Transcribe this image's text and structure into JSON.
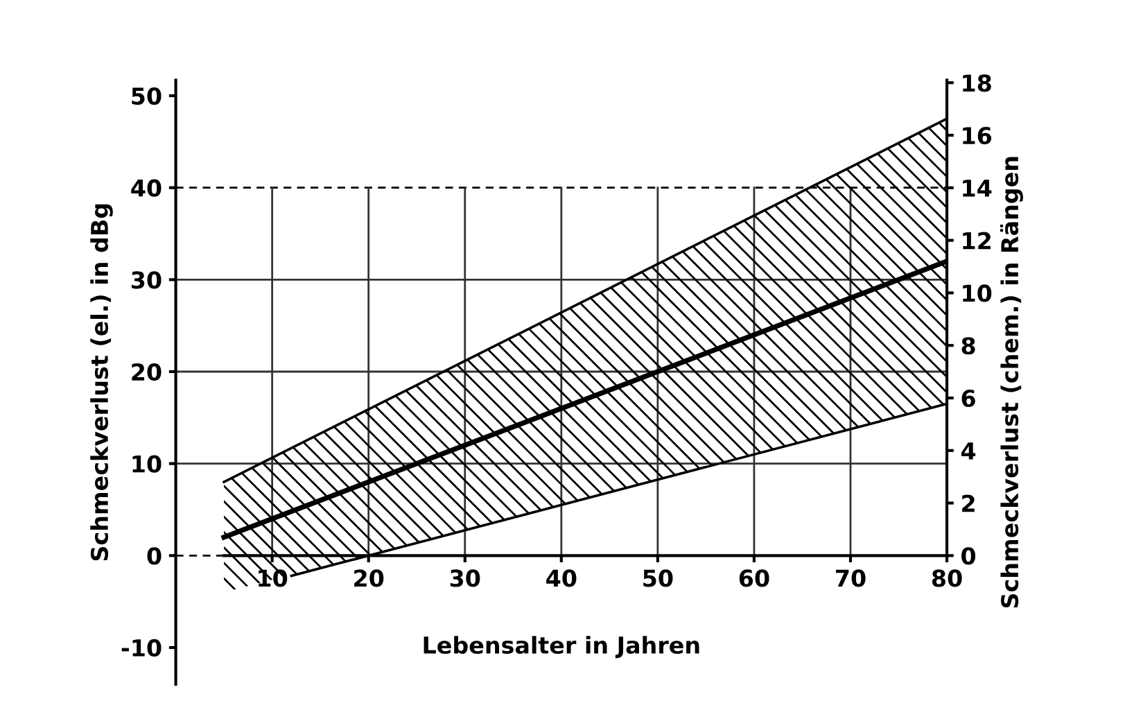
{
  "chart_data": {
    "type": "line",
    "xlabel": "Lebensalter in Jahren",
    "ylabel": "Schmeckverlust (el.) in dBg",
    "y2label": "Schmeckverlust (chem.) in Rängen",
    "xlim": [
      0,
      80
    ],
    "xticks": [
      10,
      20,
      30,
      40,
      50,
      60,
      70,
      80
    ],
    "ylim": [
      -14,
      51.7
    ],
    "yticks": [
      -10,
      0,
      10,
      20,
      30,
      40,
      50
    ],
    "y2lim": [
      -4.9,
      18.1
    ],
    "y2ticks": [
      0,
      2,
      4,
      6,
      8,
      10,
      12,
      14,
      16,
      18
    ],
    "series": [
      {
        "color": "#000000",
        "x": [
          5,
          80
        ],
        "values": [
          2,
          32
        ],
        "lower": [
          -4,
          16.5
        ],
        "upper": [
          8,
          47.5
        ]
      },
      {
        "color": "#000000",
        "x": [
          5,
          80
        ],
        "values": [
          8,
          47.5
        ]
      },
      {
        "color": "#000000",
        "x": [
          12,
          80
        ],
        "values": [
          -2.2,
          16.5
        ]
      }
    ],
    "ref_lines": [
      {
        "axis": "y",
        "value": 0,
        "line_style": "dashed",
        "color": "#000000"
      },
      {
        "axis": "y",
        "value": 40,
        "line_style": "dashed",
        "color": "#000000"
      },
      {
        "axis": "y",
        "value": 10,
        "line_style": "solid",
        "color": "#333333"
      },
      {
        "axis": "y",
        "value": 20,
        "line_style": "solid",
        "color": "#333333"
      },
      {
        "axis": "y",
        "value": 30,
        "line_style": "solid",
        "color": "#333333"
      },
      {
        "axis": "x",
        "value": 10,
        "line_style": "solid",
        "color": "#333333"
      },
      {
        "axis": "x",
        "value": 20,
        "line_style": "solid",
        "color": "#333333"
      },
      {
        "axis": "x",
        "value": 30,
        "line_style": "solid",
        "color": "#333333"
      },
      {
        "axis": "x",
        "value": 40,
        "line_style": "solid",
        "color": "#333333"
      },
      {
        "axis": "x",
        "value": 50,
        "line_style": "solid",
        "color": "#333333"
      },
      {
        "axis": "x",
        "value": 60,
        "line_style": "solid",
        "color": "#333333"
      },
      {
        "axis": "x",
        "value": 70,
        "line_style": "solid",
        "color": "#333333"
      }
    ],
    "grid": false,
    "marker": "none",
    "line_style": "solid"
  }
}
